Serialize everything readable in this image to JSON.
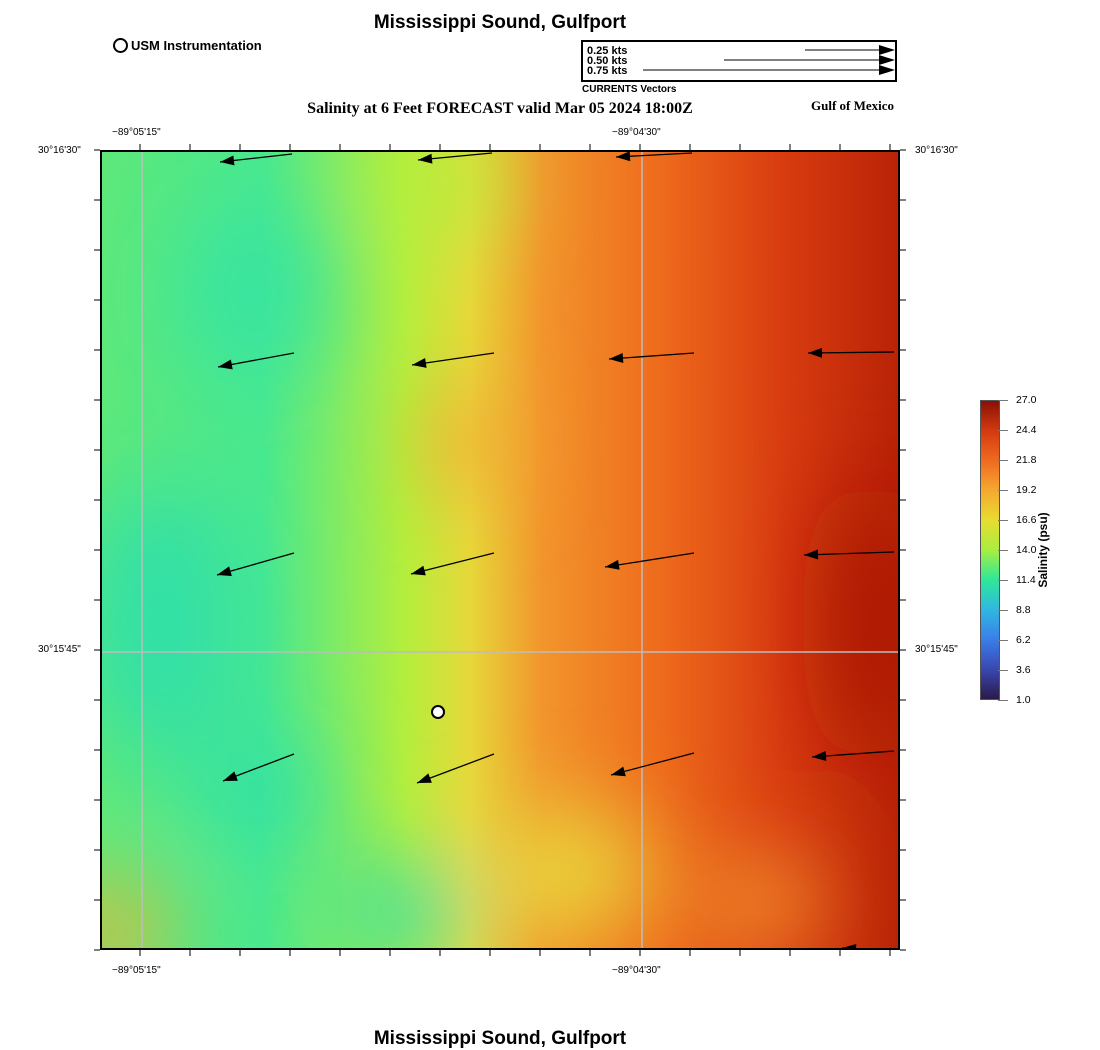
{
  "header": {
    "title": "Mississippi Sound, Gulfport",
    "station_legend": "USM Instrumentation",
    "subtitle": "Salinity at 6 Feet FORECAST valid Mar 05 2024 18:00Z",
    "region_label": "Gulf of Mexico"
  },
  "vector_legend": {
    "labels": [
      "0.25 kts",
      "0.50 kts",
      "0.75 kts"
    ],
    "caption": "CURRENTS Vectors"
  },
  "axes": {
    "lon_ticks": [
      "−89°05'15\"",
      "−89°04'30\""
    ],
    "lat_ticks": [
      "30°16'30\"",
      "30°15'45\""
    ]
  },
  "colorbar": {
    "label": "Salinity (psu)",
    "ticks": [
      "27.0",
      "24.4",
      "21.8",
      "19.2",
      "16.6",
      "14.0",
      "11.4",
      "8.8",
      "6.2",
      "3.6",
      "1.0"
    ],
    "min": 1.0,
    "max": 27.0
  },
  "footer": {
    "title": "Mississippi Sound, Gulfport"
  }
}
